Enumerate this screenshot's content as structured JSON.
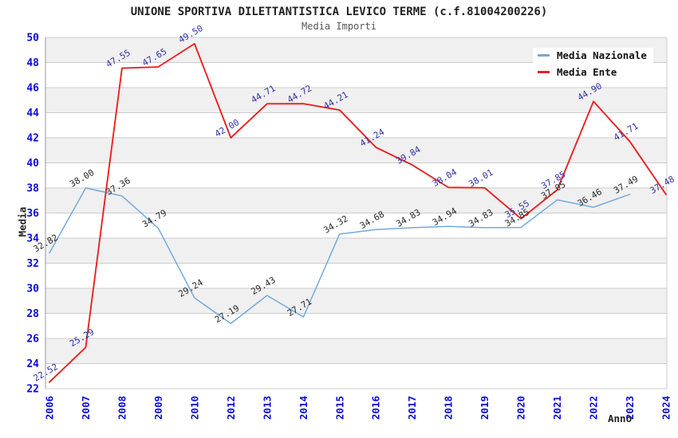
{
  "chart_data": {
    "type": "line",
    "title": "UNIONE SPORTIVA DILETTANTISTICA LEVICO TERME (c.f.81004200226)",
    "subtitle": "Media Importi",
    "xlabel": "Anno",
    "ylabel": "Media",
    "categories": [
      "2006",
      "2007",
      "2008",
      "2009",
      "2010",
      "2012",
      "2013",
      "2014",
      "2015",
      "2016",
      "2017",
      "2018",
      "2019",
      "2020",
      "2021",
      "2022",
      "2023",
      "2024"
    ],
    "ylim": [
      22,
      50
    ],
    "ytick_step": 2,
    "grid": true,
    "legend_position": "top-right",
    "series": [
      {
        "id": "media-nazionale",
        "name": "Media Nazionale",
        "color": "#74A9DB",
        "label_color": "#2B2B2B",
        "line_width": 1.5,
        "values": [
          32.82,
          38.0,
          37.36,
          34.79,
          29.24,
          27.19,
          29.43,
          27.71,
          34.32,
          34.68,
          34.83,
          34.94,
          34.83,
          34.85,
          37.05,
          36.46,
          37.49,
          null
        ]
      },
      {
        "id": "media-ente",
        "name": "Media Ente",
        "color": "#EA2121",
        "label_color": "#3232A8",
        "line_width": 1.9,
        "values": [
          22.52,
          25.29,
          47.55,
          47.65,
          49.5,
          42.0,
          44.71,
          44.72,
          44.21,
          41.24,
          39.84,
          38.04,
          38.01,
          35.55,
          37.85,
          44.9,
          41.71,
          37.48
        ]
      }
    ]
  },
  "style": {
    "band_fill": "#F0F0F0",
    "grid_color": "#CCCCCC",
    "axis_color": "#999999",
    "tick_label_color": "#0A0ADD",
    "title_color": "#222222",
    "subtitle_color": "#555555"
  }
}
